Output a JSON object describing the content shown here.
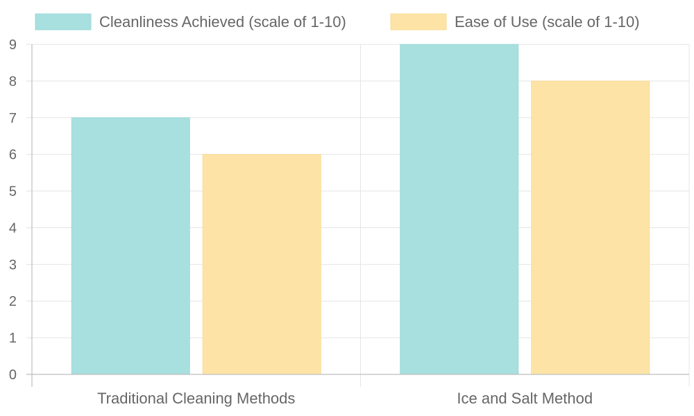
{
  "chart_data": {
    "type": "bar",
    "title": "",
    "xlabel": "",
    "ylabel": "",
    "categories": [
      "Traditional Cleaning Methods",
      "Ice and Salt Method"
    ],
    "series": [
      {
        "name": "Cleanliness Achieved (scale of 1-10)",
        "values": [
          7,
          9
        ],
        "color": "#a8dfdf",
        "stroke": "#9fd8d8"
      },
      {
        "name": "Ease of Use (scale of 1-10)",
        "values": [
          6,
          8
        ],
        "color": "#fde4a6",
        "stroke": "#f8dc9a"
      }
    ],
    "ylim": [
      0,
      9
    ],
    "yticks": [
      0,
      1,
      2,
      3,
      4,
      5,
      6,
      7,
      8,
      9
    ],
    "grid": true,
    "legend": "top"
  }
}
